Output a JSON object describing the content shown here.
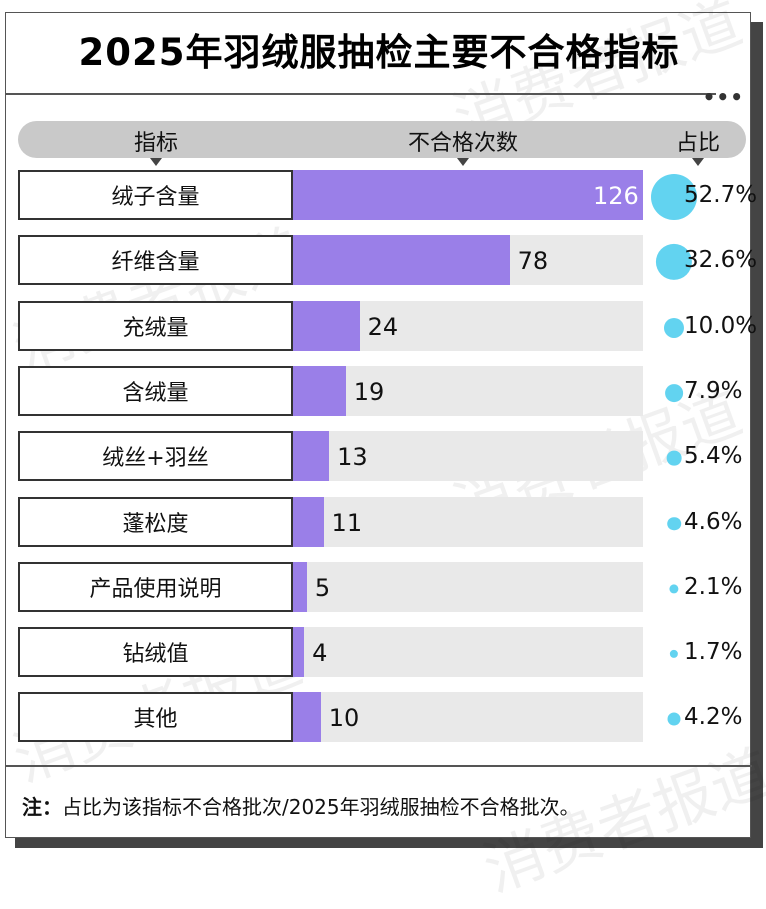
{
  "title": "2025年羽绒服抽检主要不合格指标",
  "watermark": "消费者报道",
  "header": {
    "col1": "指标",
    "col2": "不合格次数",
    "col3": "占比"
  },
  "colors": {
    "bar": "#9a7fe8",
    "track": "#e9e9e9",
    "bubble": "#62d3f0",
    "header": "#c9c9c9"
  },
  "chart_data": {
    "type": "bar",
    "orientation": "horizontal",
    "categories": [
      "绒子含量",
      "纤维含量",
      "充绒量",
      "含绒量",
      "绒丝+羽丝",
      "蓬松度",
      "产品使用说明",
      "钻绒值",
      "其他"
    ],
    "values": [
      126,
      78,
      24,
      19,
      13,
      11,
      5,
      4,
      10
    ],
    "value_labels": [
      "126",
      "78",
      "24",
      "19",
      "13",
      "11",
      "5",
      "4",
      "10"
    ],
    "shares": [
      52.7,
      32.6,
      10.0,
      7.9,
      5.4,
      4.6,
      2.1,
      1.7,
      4.2
    ],
    "share_labels": [
      "52.7%",
      "32.6%",
      "10.0%",
      "7.9%",
      "5.4%",
      "4.6%",
      "2.1%",
      "1.7%",
      "4.2%"
    ],
    "xlim": [
      0,
      126
    ]
  },
  "footnote": {
    "prefix": "注：",
    "text": "占比为该指标不合格批次/2025年羽绒服抽检不合格批次。"
  }
}
